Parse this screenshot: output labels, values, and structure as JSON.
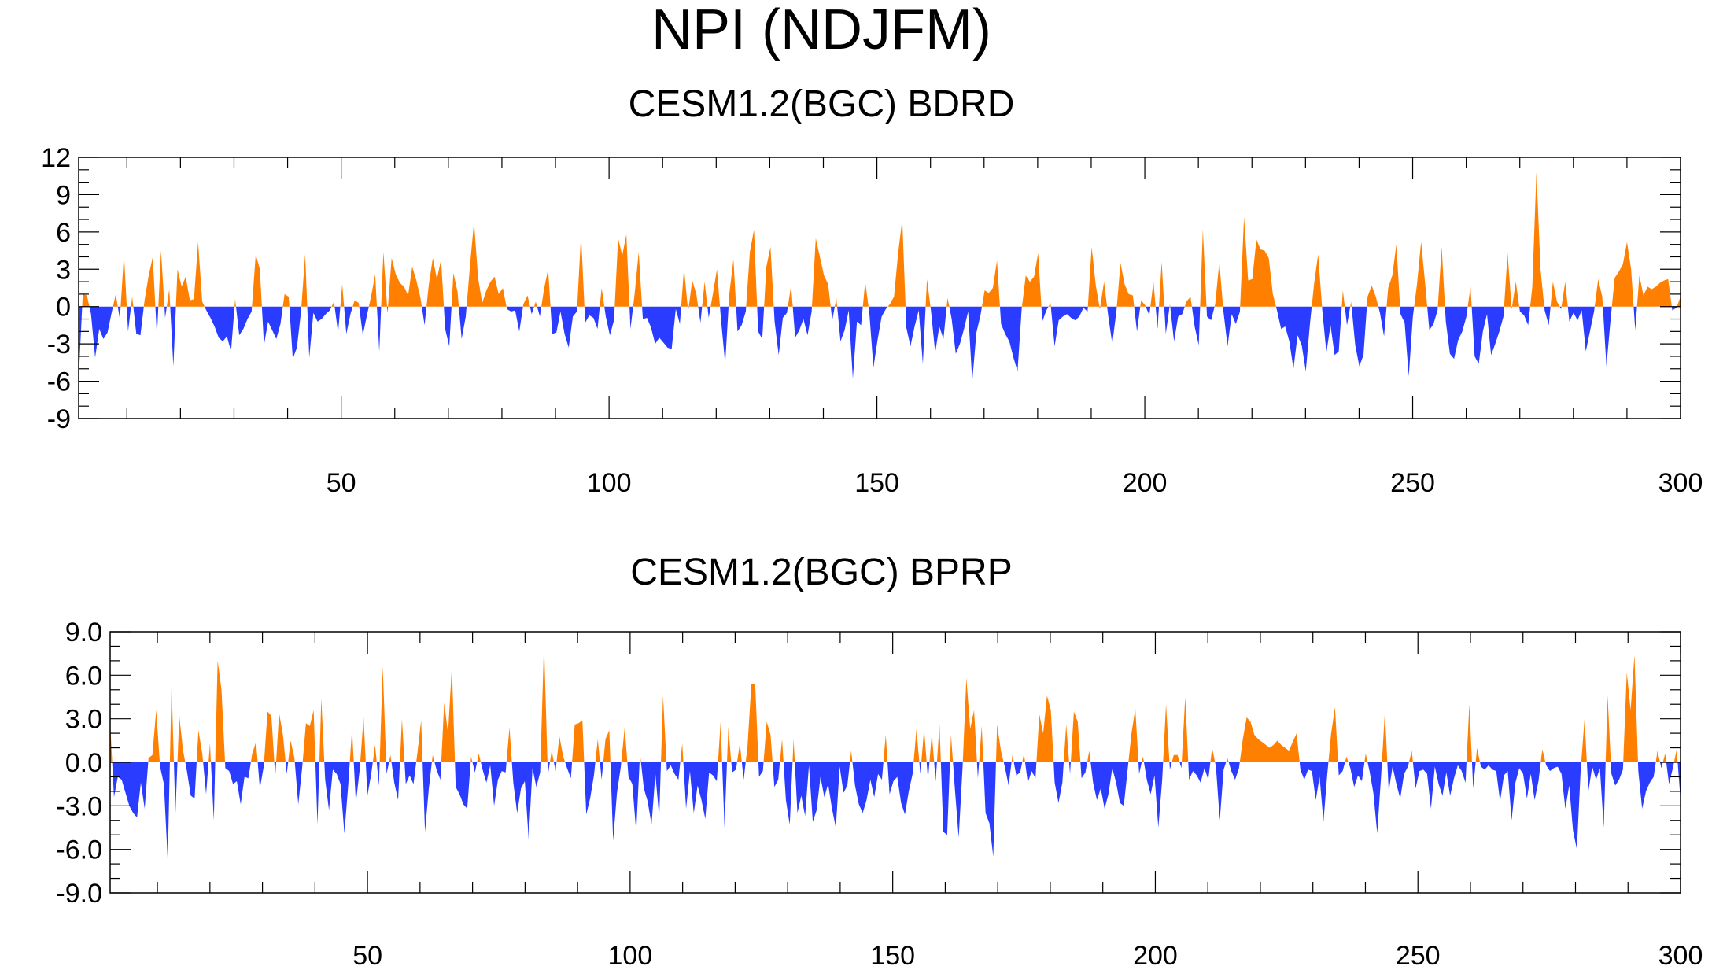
{
  "figure": {
    "title": "NPI (NDJFM)"
  },
  "colors": {
    "positive": "#ff8000",
    "negative": "#2a3cff",
    "axis": "#000000"
  },
  "chart_data": [
    {
      "type": "area",
      "title": "CESM1.2(BGC) BDRD",
      "xlabel": "",
      "ylabel": "",
      "xlim": [
        1,
        300
      ],
      "ylim": [
        -9,
        12
      ],
      "grid": false,
      "fill_positive_color": "#ff8000",
      "fill_negative_color": "#2a3cff",
      "x_ticks": [
        50,
        100,
        150,
        200,
        250,
        300
      ],
      "x_tick_labels": [
        "50",
        "100",
        "150",
        "200",
        "250",
        "300"
      ],
      "y_ticks": [
        12,
        9,
        6,
        3,
        0,
        -3,
        -6,
        -9
      ],
      "y_tick_labels": [
        "12",
        "9",
        "6",
        "3",
        "0",
        "-3",
        "-6",
        "-9"
      ],
      "x_start": 1,
      "values": [
        -5.8,
        1.0,
        0.9,
        -0.6,
        -4.1,
        -1.8,
        -2.6,
        -2.1,
        -0.5,
        1.0,
        -1.0,
        4.2,
        -2.0,
        0.8,
        -2.2,
        -2.3,
        0.5,
        2.5,
        4.0,
        -2.4,
        4.5,
        -0.9,
        1.4,
        -4.8,
        3.0,
        1.6,
        2.4,
        0.5,
        0.6,
        5.2,
        0.4,
        -0.3,
        -0.9,
        -1.6,
        -2.5,
        -2.8,
        -2.4,
        -3.6,
        0.6,
        -2.3,
        -1.8,
        -1.0,
        -0.4,
        4.2,
        3.0,
        -3.1,
        -1.2,
        -1.9,
        -2.6,
        -1.4,
        1.0,
        0.8,
        -4.2,
        -3.3,
        -0.4,
        4.2,
        -4.1,
        -0.5,
        -1.2,
        -1.0,
        -0.6,
        -0.3,
        0.4,
        -2.1,
        1.8,
        -2.2,
        -0.6,
        0.5,
        0.3,
        -2.3,
        -0.7,
        0.8,
        2.6,
        -3.6,
        4.4,
        -0.5,
        3.9,
        2.6,
        1.9,
        1.6,
        0.9,
        3.2,
        2.1,
        0.7,
        -1.5,
        1.7,
        3.9,
        2.2,
        3.8,
        -1.8,
        -3.2,
        2.7,
        1.2,
        -2.6,
        -0.8,
        3.2,
        6.8,
        2.3,
        0.3,
        1.3,
        2.0,
        2.4,
        1.0,
        1.5,
        -0.2,
        -0.4,
        -0.3,
        -2.0,
        0.2,
        0.9,
        -0.6,
        0.4,
        -0.8,
        1.4,
        3.0,
        -2.2,
        -2.1,
        -0.4,
        -2.2,
        -3.3,
        -0.8,
        -0.4,
        5.8,
        -1.3,
        -0.7,
        -0.9,
        -1.8,
        1.5,
        -0.8,
        -2.3,
        -1.1,
        5.5,
        4.1,
        5.8,
        -1.8,
        1.0,
        4.4,
        -1.0,
        -0.9,
        -1.7,
        -3.0,
        -2.5,
        -2.9,
        -3.3,
        -3.4,
        -0.2,
        -1.4,
        3.1,
        -0.4,
        2.1,
        1.0,
        -1.3,
        2.0,
        -0.9,
        1.0,
        3.0,
        -1.1,
        -4.6,
        1.0,
        3.8,
        -2.0,
        -1.5,
        -0.4,
        4.4,
        6.2,
        -2.0,
        -2.6,
        3.2,
        4.8,
        -1.2,
        -3.9,
        -0.9,
        -0.5,
        1.7,
        -2.5,
        -1.9,
        -1.0,
        -2.3,
        -0.4,
        5.5,
        4.0,
        2.5,
        1.8,
        -1.1,
        0.7,
        -2.8,
        -1.9,
        -0.3,
        -5.8,
        -1.2,
        -1.5,
        2.0,
        -0.5,
        -4.9,
        -2.7,
        -0.8,
        -0.2,
        0.2,
        0.8,
        4.3,
        7.0,
        -1.7,
        -3.2,
        -1.6,
        -0.3,
        -4.6,
        2.2,
        -0.4,
        -3.7,
        -1.6,
        -2.6,
        0.7,
        -1.0,
        -3.8,
        -3.0,
        -1.8,
        -0.4,
        -6.0,
        -2.1,
        -0.7,
        1.3,
        1.1,
        1.5,
        3.7,
        -1.4,
        -2.2,
        -2.8,
        -4.1,
        -5.2,
        -0.2,
        2.5,
        2.0,
        2.4,
        4.3,
        -1.2,
        -0.3,
        0.3,
        -3.2,
        -1.1,
        -0.8,
        -0.6,
        -0.9,
        -1.1,
        -0.8,
        -0.1,
        -0.4,
        4.8,
        1.7,
        -0.2,
        2.0,
        -0.7,
        -3.0,
        -0.4,
        3.5,
        1.8,
        1.0,
        0.9,
        -2.0,
        0.5,
        0.1,
        -0.7,
        2.0,
        -1.8,
        3.6,
        -2.2,
        0.2,
        -2.8,
        -0.8,
        -0.6,
        0.4,
        0.8,
        -1.6,
        -3.1,
        6.2,
        -0.8,
        -1.1,
        0.2,
        3.6,
        -0.4,
        -3.2,
        -0.6,
        -1.4,
        -0.4,
        7.2,
        2.1,
        2.2,
        5.4,
        4.6,
        4.5,
        3.9,
        1.0,
        -0.3,
        -1.8,
        -1.6,
        -2.8,
        -5.0,
        -2.3,
        -3.1,
        -5.2,
        -1.4,
        1.8,
        4.2,
        -0.3,
        -3.7,
        -1.5,
        -3.9,
        -3.6,
        1.3,
        -1.5,
        0.4,
        -3.1,
        -4.8,
        -3.9,
        0.8,
        1.7,
        0.8,
        -0.5,
        -2.4,
        1.5,
        2.5,
        5.0,
        -0.6,
        -1.3,
        -5.6,
        -0.8,
        1.8,
        5.2,
        1.8,
        -1.9,
        -1.4,
        -0.3,
        4.8,
        -1.2,
        -3.8,
        -4.2,
        -2.7,
        -2.0,
        -0.8,
        1.6,
        -4.0,
        -4.6,
        -2.0,
        -0.6,
        -3.9,
        -3.0,
        -2.0,
        -0.8,
        4.3,
        -0.2,
        2.0,
        -0.4,
        -0.7,
        -1.5,
        1.6,
        10.8,
        3.0,
        -0.3,
        -1.5,
        2.0,
        0.4,
        -0.2,
        2.0,
        -1.2,
        -0.5,
        -1.1,
        -0.3,
        -3.6,
        -2.0,
        -0.4,
        2.2,
        0.8,
        -4.8,
        -1.1,
        2.3,
        2.8,
        3.4,
        5.2,
        3.0,
        -1.9,
        2.5,
        0.9,
        1.6,
        1.4,
        1.6,
        1.9,
        2.1,
        2.2,
        -0.3,
        -0.1,
        0.8
      ]
    },
    {
      "type": "area",
      "title": "CESM1.2(BGC) BPRP",
      "xlabel": "",
      "ylabel": "",
      "xlim": [
        1,
        300
      ],
      "ylim": [
        -9,
        9
      ],
      "grid": false,
      "fill_positive_color": "#ff8000",
      "fill_negative_color": "#2a3cff",
      "x_ticks": [
        50,
        100,
        150,
        200,
        250,
        300
      ],
      "x_tick_labels": [
        "50",
        "100",
        "150",
        "200",
        "250",
        "300"
      ],
      "y_ticks": [
        9,
        6,
        3,
        0,
        -3,
        -6,
        -9
      ],
      "y_tick_labels": [
        "9.0",
        "6.0",
        "3.0",
        "0.0",
        "-3.0",
        "-6.0",
        "-9.0"
      ],
      "x_start": 1,
      "values": [
        2.8,
        -2.4,
        -1.0,
        -1.2,
        -2.1,
        -3.0,
        -3.5,
        -3.8,
        -1.4,
        -3.2,
        0.3,
        0.5,
        3.6,
        -0.3,
        -1.5,
        -6.8,
        5.4,
        -3.6,
        3.2,
        0.8,
        -0.6,
        -2.3,
        -2.5,
        2.2,
        0.6,
        -2.2,
        1.3,
        -4.0,
        7.0,
        5.0,
        -0.4,
        -0.6,
        -1.5,
        -1.3,
        -2.9,
        -1.0,
        -1.1,
        0.6,
        1.4,
        -1.8,
        -0.3,
        3.5,
        3.2,
        -1.0,
        3.4,
        1.9,
        -0.8,
        1.5,
        0.3,
        -2.9,
        -0.4,
        2.7,
        2.5,
        3.6,
        -4.3,
        4.4,
        -1.2,
        -3.3,
        -0.5,
        -0.8,
        -1.5,
        -4.9,
        -1.6,
        2.3,
        -2.8,
        -0.5,
        3.1,
        -2.3,
        -0.8,
        1.2,
        -1.6,
        6.6,
        -0.8,
        0.5,
        -1.4,
        -2.6,
        3.0,
        -1.5,
        -0.9,
        -1.5,
        0.6,
        2.9,
        -4.8,
        -1.8,
        0.5,
        -0.5,
        -1.2,
        4.1,
        2.0,
        6.6,
        -1.7,
        -2.2,
        -2.9,
        -3.2,
        0.4,
        -0.7,
        0.6,
        -0.5,
        -1.4,
        -0.2,
        -3.0,
        -1.2,
        -0.6,
        -0.7,
        2.4,
        -1.4,
        -3.5,
        -1.8,
        -1.3,
        -5.3,
        -0.4,
        -1.7,
        -0.7,
        8.2,
        -0.9,
        0.8,
        -0.6,
        1.8,
        0.4,
        -0.4,
        -1.1,
        2.6,
        2.7,
        2.9,
        -3.6,
        -2.5,
        -0.9,
        1.6,
        -1.2,
        1.6,
        2.2,
        -5.4,
        -2.1,
        -0.3,
        2.4,
        -1.0,
        -1.5,
        -4.8,
        0.6,
        -1.8,
        -2.7,
        -4.3,
        -0.8,
        -3.8,
        4.6,
        -0.6,
        -0.2,
        -0.8,
        -1.2,
        1.3,
        -3.2,
        -0.6,
        -3.5,
        -1.6,
        -2.6,
        -3.9,
        -0.7,
        -0.9,
        -1.3,
        2.8,
        -4.5,
        2.4,
        -0.7,
        -0.5,
        1.3,
        -1.2,
        1.1,
        5.4,
        5.4,
        -1.0,
        -0.6,
        2.8,
        1.9,
        -1.7,
        -1.2,
        1.6,
        -2.6,
        -4.3,
        1.6,
        -3.5,
        -2.3,
        -3.7,
        -0.2,
        -4.1,
        -3.3,
        -1.0,
        -2.4,
        -1.5,
        -3.2,
        -4.5,
        -0.3,
        -2.1,
        -1.6,
        0.8,
        -1.6,
        -2.9,
        -3.5,
        -2.6,
        -1.2,
        -2.4,
        -0.8,
        -1.2,
        1.9,
        -2.2,
        -1.3,
        -1.0,
        -2.8,
        -3.6,
        -2.0,
        -0.8,
        2.3,
        -0.8,
        2.3,
        -1.2,
        2.0,
        -1.3,
        2.6,
        -4.8,
        -5.0,
        1.9,
        -1.8,
        -5.2,
        -0.4,
        5.8,
        2.3,
        3.6,
        -1.1,
        2.5,
        -3.5,
        -4.2,
        -6.5,
        2.6,
        0.8,
        -0.3,
        -1.6,
        0.5,
        -0.9,
        -0.7,
        0.6,
        -1.4,
        -0.6,
        -1.1,
        3.3,
        2.0,
        4.6,
        3.6,
        -1.4,
        -2.8,
        -1.4,
        2.6,
        -0.8,
        3.5,
        2.8,
        -1.1,
        -0.7,
        0.8,
        -1.4,
        -2.6,
        -1.8,
        -3.2,
        -2.2,
        -0.4,
        -1.4,
        -2.8,
        -3.0,
        -0.5,
        2.0,
        3.7,
        -0.8,
        0.4,
        -1.2,
        -2.2,
        -0.9,
        -4.5,
        -1.2,
        4.0,
        -0.5,
        0.5,
        0.5,
        -0.4,
        4.5,
        -1.2,
        -0.6,
        -0.9,
        -1.4,
        -0.4,
        -1.2,
        1.0,
        -0.3,
        -4.0,
        -0.5,
        0.3,
        -0.6,
        -1.2,
        -0.4,
        1.6,
        3.1,
        2.8,
        1.9,
        1.6,
        1.4,
        1.2,
        1.0,
        1.2,
        1.5,
        1.2,
        1.0,
        0.8,
        1.4,
        2.0,
        -0.5,
        -1.2,
        -0.5,
        -0.6,
        -2.6,
        -1.0,
        -4.1,
        -0.8,
        2.0,
        3.8,
        -0.9,
        -0.6,
        0.4,
        -0.4,
        -1.7,
        -0.9,
        -1.3,
        0.6,
        -0.6,
        -2.1,
        -4.9,
        -1.0,
        3.5,
        -2.0,
        -0.3,
        -1.5,
        -2.5,
        -0.8,
        -0.3,
        0.8,
        -1.8,
        -0.6,
        -0.5,
        -0.8,
        -3.2,
        -0.3,
        -1.5,
        -2.3,
        -0.7,
        -2.3,
        -1.1,
        -0.2,
        -0.6,
        -1.4,
        4.0,
        -1.8,
        1.0,
        -0.3,
        -0.5,
        -0.2,
        -0.5,
        -0.6,
        -2.7,
        -0.9,
        -0.6,
        -4.0,
        -1.4,
        -0.4,
        -0.8,
        -2.5,
        -0.8,
        -2.6,
        -1.3,
        0.9,
        -0.2,
        -0.6,
        -0.4,
        -0.3,
        -0.8,
        -3.2,
        -1.6,
        -4.7,
        -6.0,
        -0.5,
        3.0,
        -2.0,
        -0.3,
        -1.2,
        -0.4,
        -4.5,
        4.6,
        -0.8,
        -1.6,
        -1.2,
        -0.5,
        6.2,
        3.6,
        7.4,
        -0.6,
        -3.2,
        -2.0,
        -1.4,
        -1.0,
        0.8,
        -0.4,
        0.6,
        -1.5,
        -0.4,
        0.9,
        -2.6
      ]
    }
  ]
}
